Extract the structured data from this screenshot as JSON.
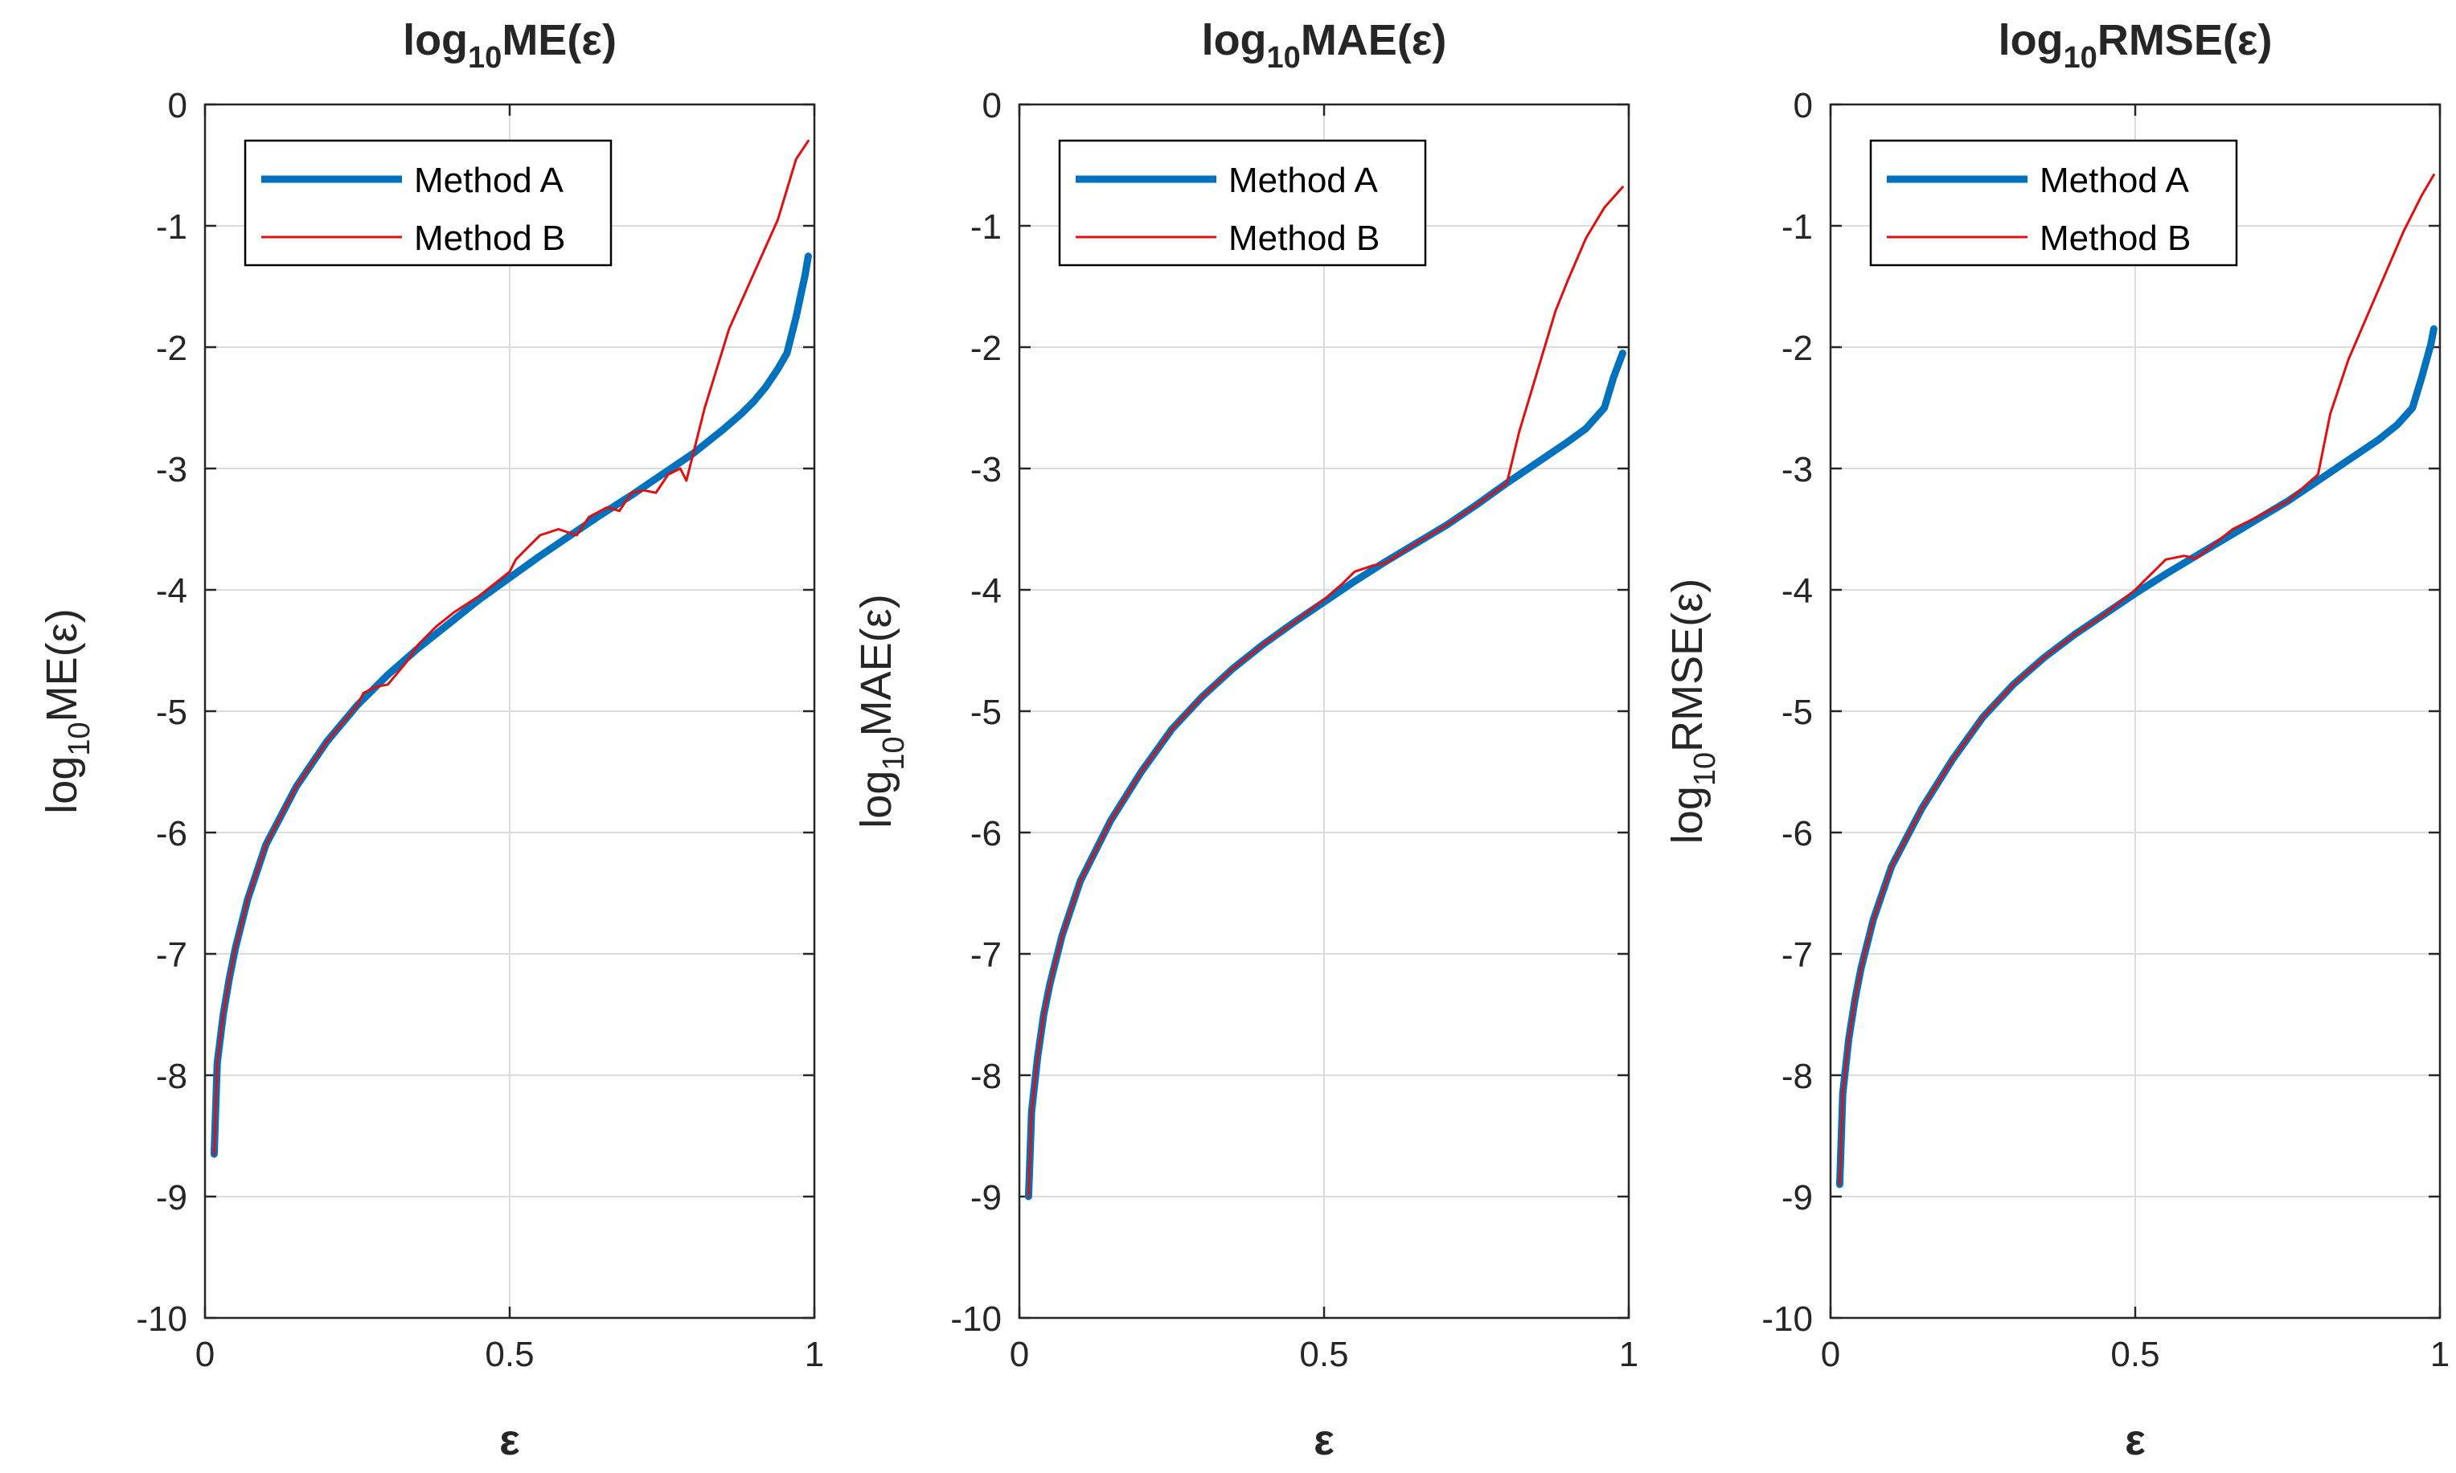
{
  "colors": {
    "method_a": "#0072BD",
    "method_b": "#E01010",
    "axis": "#262626",
    "grid": "#DCDCDC",
    "background": "#FFFFFF"
  },
  "chart_data": [
    {
      "type": "line",
      "title_parts": [
        "log",
        "10",
        "ME(ε)"
      ],
      "xlabel": "ε",
      "ylabel_parts": [
        "log",
        "10",
        "ME(ε)"
      ],
      "xlim": [
        0,
        1
      ],
      "ylim": [
        -10,
        0
      ],
      "xticks": [
        0,
        0.5,
        1
      ],
      "xtick_labels": [
        "0",
        "0.5",
        "1"
      ],
      "yticks": [
        0,
        -1,
        -2,
        -3,
        -4,
        -5,
        -6,
        -7,
        -8,
        -9,
        -10
      ],
      "ytick_labels": [
        "0",
        "-1",
        "-2",
        "-3",
        "-4",
        "-5",
        "-6",
        "-7",
        "-8",
        "-9",
        "-10"
      ],
      "grid": true,
      "legend_position": "top-left",
      "series": [
        {
          "name": "Method A",
          "x": [
            0.015,
            0.02,
            0.03,
            0.04,
            0.05,
            0.07,
            0.1,
            0.15,
            0.2,
            0.25,
            0.3,
            0.35,
            0.4,
            0.45,
            0.5,
            0.55,
            0.6,
            0.65,
            0.7,
            0.75,
            0.8,
            0.85,
            0.88,
            0.9,
            0.92,
            0.94,
            0.955,
            0.97,
            0.985,
            0.99
          ],
          "y": [
            -8.65,
            -7.9,
            -7.5,
            -7.2,
            -6.95,
            -6.55,
            -6.1,
            -5.62,
            -5.25,
            -4.95,
            -4.7,
            -4.48,
            -4.28,
            -4.08,
            -3.9,
            -3.72,
            -3.55,
            -3.38,
            -3.22,
            -3.05,
            -2.88,
            -2.68,
            -2.55,
            -2.45,
            -2.33,
            -2.18,
            -2.05,
            -1.75,
            -1.4,
            -1.25
          ]
        },
        {
          "name": "Method B",
          "x": [
            0.015,
            0.02,
            0.03,
            0.04,
            0.05,
            0.07,
            0.1,
            0.15,
            0.2,
            0.25,
            0.26,
            0.28,
            0.3,
            0.33,
            0.35,
            0.38,
            0.41,
            0.45,
            0.5,
            0.51,
            0.53,
            0.55,
            0.58,
            0.61,
            0.63,
            0.66,
            0.68,
            0.7,
            0.72,
            0.74,
            0.76,
            0.78,
            0.79,
            0.82,
            0.86,
            0.9,
            0.94,
            0.97,
            0.99
          ],
          "y": [
            -8.65,
            -7.9,
            -7.5,
            -7.2,
            -6.95,
            -6.55,
            -6.1,
            -5.62,
            -5.25,
            -4.95,
            -4.85,
            -4.8,
            -4.78,
            -4.6,
            -4.45,
            -4.3,
            -4.18,
            -4.05,
            -3.85,
            -3.75,
            -3.65,
            -3.55,
            -3.5,
            -3.55,
            -3.4,
            -3.32,
            -3.35,
            -3.2,
            -3.18,
            -3.2,
            -3.05,
            -3.0,
            -3.1,
            -2.5,
            -1.85,
            -1.4,
            -0.95,
            -0.45,
            -0.3
          ]
        }
      ]
    },
    {
      "type": "line",
      "title_parts": [
        "log",
        "10",
        "MAE(ε)"
      ],
      "xlabel": "ε",
      "ylabel_parts": [
        "log",
        "10",
        "MAE(ε)"
      ],
      "xlim": [
        0,
        1
      ],
      "ylim": [
        -10,
        0
      ],
      "xticks": [
        0,
        0.5,
        1
      ],
      "xtick_labels": [
        "0",
        "0.5",
        "1"
      ],
      "yticks": [
        0,
        -1,
        -2,
        -3,
        -4,
        -5,
        -6,
        -7,
        -8,
        -9,
        -10
      ],
      "ytick_labels": [
        "0",
        "-1",
        "-2",
        "-3",
        "-4",
        "-5",
        "-6",
        "-7",
        "-8",
        "-9",
        "-10"
      ],
      "grid": true,
      "legend_position": "top-left",
      "series": [
        {
          "name": "Method A",
          "x": [
            0.015,
            0.02,
            0.03,
            0.04,
            0.05,
            0.07,
            0.1,
            0.15,
            0.2,
            0.25,
            0.3,
            0.35,
            0.4,
            0.45,
            0.5,
            0.55,
            0.6,
            0.65,
            0.7,
            0.75,
            0.8,
            0.85,
            0.9,
            0.93,
            0.96,
            0.975,
            0.99
          ],
          "y": [
            -9.0,
            -8.3,
            -7.85,
            -7.5,
            -7.25,
            -6.85,
            -6.4,
            -5.9,
            -5.5,
            -5.15,
            -4.88,
            -4.65,
            -4.45,
            -4.27,
            -4.1,
            -3.93,
            -3.77,
            -3.62,
            -3.47,
            -3.3,
            -3.12,
            -2.95,
            -2.78,
            -2.67,
            -2.5,
            -2.25,
            -2.05
          ]
        },
        {
          "name": "Method B",
          "x": [
            0.015,
            0.02,
            0.03,
            0.04,
            0.05,
            0.07,
            0.1,
            0.15,
            0.2,
            0.25,
            0.3,
            0.35,
            0.4,
            0.45,
            0.5,
            0.53,
            0.55,
            0.58,
            0.6,
            0.65,
            0.7,
            0.75,
            0.8,
            0.82,
            0.85,
            0.88,
            0.9,
            0.93,
            0.96,
            0.99
          ],
          "y": [
            -9.0,
            -8.3,
            -7.85,
            -7.5,
            -7.25,
            -6.85,
            -6.4,
            -5.9,
            -5.5,
            -5.15,
            -4.88,
            -4.65,
            -4.45,
            -4.27,
            -4.08,
            -3.95,
            -3.85,
            -3.8,
            -3.78,
            -3.62,
            -3.47,
            -3.3,
            -3.12,
            -2.7,
            -2.2,
            -1.7,
            -1.45,
            -1.1,
            -0.85,
            -0.68
          ]
        }
      ]
    },
    {
      "type": "line",
      "title_parts": [
        "log",
        "10",
        "RMSE(ε)"
      ],
      "xlabel": "ε",
      "ylabel_parts": [
        "log",
        "10",
        "RMSE(ε)"
      ],
      "xlim": [
        0,
        1
      ],
      "ylim": [
        -10,
        0
      ],
      "xticks": [
        0,
        0.5,
        1
      ],
      "xtick_labels": [
        "0",
        "0.5",
        "1"
      ],
      "yticks": [
        0,
        -1,
        -2,
        -3,
        -4,
        -5,
        -6,
        -7,
        -8,
        -9,
        -10
      ],
      "ytick_labels": [
        "0",
        "-1",
        "-2",
        "-3",
        "-4",
        "-5",
        "-6",
        "-7",
        "-8",
        "-9",
        "-10"
      ],
      "grid": true,
      "legend_position": "top-left",
      "series": [
        {
          "name": "Method A",
          "x": [
            0.015,
            0.02,
            0.03,
            0.04,
            0.05,
            0.07,
            0.1,
            0.15,
            0.2,
            0.25,
            0.3,
            0.35,
            0.4,
            0.45,
            0.5,
            0.55,
            0.6,
            0.65,
            0.7,
            0.75,
            0.8,
            0.85,
            0.9,
            0.93,
            0.955,
            0.97,
            0.985,
            0.99
          ],
          "y": [
            -8.9,
            -8.15,
            -7.7,
            -7.38,
            -7.12,
            -6.72,
            -6.28,
            -5.8,
            -5.4,
            -5.05,
            -4.78,
            -4.56,
            -4.37,
            -4.2,
            -4.03,
            -3.87,
            -3.72,
            -3.57,
            -3.42,
            -3.27,
            -3.1,
            -2.93,
            -2.76,
            -2.64,
            -2.5,
            -2.25,
            -1.98,
            -1.85
          ]
        },
        {
          "name": "Method B",
          "x": [
            0.015,
            0.02,
            0.03,
            0.04,
            0.05,
            0.07,
            0.1,
            0.15,
            0.2,
            0.25,
            0.3,
            0.35,
            0.4,
            0.45,
            0.5,
            0.53,
            0.55,
            0.58,
            0.6,
            0.63,
            0.66,
            0.7,
            0.75,
            0.8,
            0.82,
            0.85,
            0.88,
            0.91,
            0.94,
            0.97,
            0.99
          ],
          "y": [
            -8.9,
            -8.15,
            -7.7,
            -7.38,
            -7.12,
            -6.72,
            -6.28,
            -5.8,
            -5.4,
            -5.05,
            -4.78,
            -4.56,
            -4.37,
            -4.2,
            -4.0,
            -3.85,
            -3.75,
            -3.72,
            -3.74,
            -3.62,
            -3.5,
            -3.4,
            -3.27,
            -3.05,
            -2.55,
            -2.1,
            -1.75,
            -1.4,
            -1.05,
            -0.75,
            -0.58
          ]
        }
      ]
    }
  ]
}
